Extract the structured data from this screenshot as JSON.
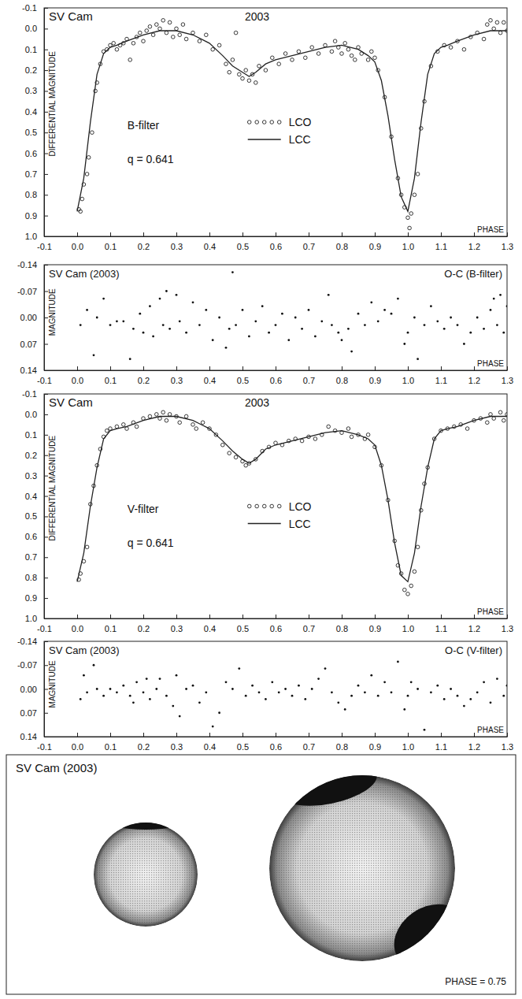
{
  "chart_data": [
    {
      "type": "line",
      "title": "SV Cam",
      "subtitle": "2003",
      "xlabel": "PHASE",
      "ylabel": "DIFFERENTIAL MAGNITUDE",
      "annotations": [
        "B-filter",
        "q = 0.641"
      ],
      "legend": "center",
      "xlim": [
        -0.1,
        1.3
      ],
      "ylim": [
        1.0,
        -0.1
      ],
      "xticks": [
        -0.1,
        {
          "value": 0,
          "label": "0.0"
        },
        0.1,
        0.2,
        0.3,
        0.4,
        0.5,
        0.6,
        0.7,
        0.8,
        0.9,
        {
          "value": 1,
          "label": "1.0"
        },
        1.1,
        1.2,
        1.3
      ],
      "yticks": [
        -0.1,
        {
          "value": 0,
          "label": "0.0"
        },
        0.1,
        0.2,
        0.3,
        0.4,
        0.5,
        0.6,
        0.7,
        0.8,
        0.9,
        {
          "value": 1,
          "label": "1.0"
        }
      ],
      "series": [
        {
          "name": "LCO",
          "type": "scatter",
          "marker": "open-circle",
          "color": "#222222",
          "x": [
            0.005,
            0.01,
            0.015,
            0.02,
            0.03,
            0.035,
            0.045,
            0.055,
            0.06,
            0.07,
            0.08,
            0.09,
            0.1,
            0.11,
            0.12,
            0.13,
            0.14,
            0.15,
            0.16,
            0.17,
            0.18,
            0.19,
            0.2,
            0.21,
            0.22,
            0.23,
            0.24,
            0.25,
            0.26,
            0.27,
            0.28,
            0.29,
            0.3,
            0.31,
            0.32,
            0.33,
            0.35,
            0.37,
            0.39,
            0.41,
            0.43,
            0.45,
            0.46,
            0.47,
            0.48,
            0.49,
            0.5,
            0.51,
            0.52,
            0.53,
            0.54,
            0.55,
            0.57,
            0.59,
            0.61,
            0.63,
            0.65,
            0.67,
            0.69,
            0.71,
            0.73,
            0.75,
            0.77,
            0.78,
            0.79,
            0.8,
            0.81,
            0.82,
            0.83,
            0.84,
            0.85,
            0.86,
            0.88,
            0.89,
            0.9,
            0.91,
            0.93,
            0.95,
            0.97,
            0.98,
            0.99,
            1.0,
            1.005,
            1.01,
            1.02,
            1.03,
            1.04,
            1.05,
            1.07,
            1.09,
            1.11,
            1.13,
            1.15,
            1.17,
            1.19,
            1.21,
            1.23,
            1.24,
            1.25,
            1.26,
            1.27,
            1.28,
            1.29,
            1.3
          ],
          "values": [
            0.87,
            0.88,
            0.82,
            0.75,
            0.7,
            0.62,
            0.5,
            0.3,
            0.26,
            0.17,
            0.11,
            0.1,
            0.08,
            0.07,
            0.1,
            0.08,
            0.07,
            0.05,
            0.15,
            0.07,
            0.04,
            0.02,
            0.06,
            0.01,
            -0.01,
            0.03,
            -0.02,
            0.0,
            -0.04,
            0.02,
            -0.03,
            0.04,
            0.0,
            0.03,
            -0.02,
            0.05,
            0.02,
            0.06,
            0.03,
            0.1,
            0.08,
            0.17,
            0.21,
            0.15,
            0.02,
            0.22,
            0.24,
            0.2,
            0.25,
            0.22,
            0.26,
            0.18,
            0.2,
            0.14,
            0.17,
            0.12,
            0.15,
            0.11,
            0.14,
            0.09,
            0.12,
            0.08,
            0.11,
            0.06,
            0.09,
            0.12,
            0.07,
            0.1,
            0.13,
            0.15,
            0.09,
            0.12,
            0.15,
            0.11,
            0.14,
            0.2,
            0.33,
            0.52,
            0.72,
            0.8,
            0.86,
            0.91,
            0.96,
            0.89,
            0.8,
            0.7,
            0.48,
            0.35,
            0.18,
            0.11,
            0.08,
            0.09,
            0.06,
            0.1,
            0.04,
            0.02,
            0.05,
            -0.02,
            -0.04,
            0.0,
            -0.03,
            0.02,
            -0.03,
            0.01
          ]
        },
        {
          "name": "LCC",
          "type": "line",
          "line_style": "solid",
          "color": "#222222",
          "x": [
            0,
            0.02,
            0.04,
            0.06,
            0.08,
            0.1,
            0.12,
            0.15,
            0.2,
            0.25,
            0.3,
            0.35,
            0.4,
            0.44,
            0.47,
            0.5,
            0.52,
            0.54,
            0.57,
            0.6,
            0.65,
            0.7,
            0.75,
            0.8,
            0.85,
            0.88,
            0.9,
            0.92,
            0.94,
            0.96,
            0.98,
            1.0,
            1.02,
            1.04,
            1.06,
            1.08,
            1.1,
            1.12,
            1.15,
            1.2,
            1.25,
            1.3
          ],
          "values": [
            0.88,
            0.72,
            0.45,
            0.22,
            0.12,
            0.09,
            0.08,
            0.06,
            0.03,
            0.01,
            0.01,
            0.03,
            0.07,
            0.13,
            0.18,
            0.21,
            0.23,
            0.21,
            0.17,
            0.15,
            0.13,
            0.11,
            0.09,
            0.08,
            0.1,
            0.13,
            0.16,
            0.25,
            0.42,
            0.63,
            0.81,
            0.88,
            0.72,
            0.45,
            0.22,
            0.12,
            0.09,
            0.08,
            0.06,
            0.03,
            0.01,
            0.01
          ]
        }
      ]
    },
    {
      "type": "scatter",
      "title": "SV Cam (2003)",
      "subtitle": "O-C (B-filter)",
      "xlabel": "PHASE",
      "ylabel": "MAGNITUDE",
      "marker": "dot",
      "color": "#111111",
      "xlim": [
        -0.1,
        1.3
      ],
      "ylim": [
        0.14,
        -0.14
      ],
      "xticks": [
        -0.1,
        {
          "value": 0,
          "label": "0.0"
        },
        0.1,
        0.2,
        0.3,
        0.4,
        0.5,
        0.6,
        0.7,
        0.8,
        0.9,
        {
          "value": 1,
          "label": "1.0"
        },
        1.1,
        1.2,
        1.3
      ],
      "yticks": [
        -0.14,
        -0.07,
        {
          "value": 0,
          "label": "0.00"
        },
        0.07,
        0.14
      ],
      "x": [
        0.01,
        0.03,
        0.05,
        0.06,
        0.08,
        0.1,
        0.12,
        0.14,
        0.16,
        0.17,
        0.19,
        0.2,
        0.22,
        0.23,
        0.25,
        0.26,
        0.27,
        0.28,
        0.3,
        0.31,
        0.33,
        0.35,
        0.37,
        0.39,
        0.41,
        0.43,
        0.45,
        0.46,
        0.47,
        0.48,
        0.5,
        0.52,
        0.54,
        0.56,
        0.58,
        0.6,
        0.62,
        0.64,
        0.66,
        0.68,
        0.7,
        0.72,
        0.74,
        0.76,
        0.77,
        0.79,
        0.8,
        0.82,
        0.83,
        0.85,
        0.87,
        0.89,
        0.91,
        0.93,
        0.95,
        0.97,
        0.99,
        1.0,
        1.02,
        1.03,
        1.05,
        1.07,
        1.09,
        1.11,
        1.13,
        1.15,
        1.17,
        1.19,
        1.21,
        1.23,
        1.25,
        1.26,
        1.27,
        1.28,
        1.29,
        1.3
      ],
      "values": [
        0.02,
        -0.02,
        0.1,
        0.0,
        -0.05,
        0.02,
        0.01,
        0.01,
        0.11,
        0.03,
        -0.01,
        0.04,
        -0.03,
        0.05,
        -0.05,
        0.02,
        -0.07,
        0.03,
        -0.06,
        0.01,
        0.04,
        -0.04,
        0.02,
        -0.02,
        0.06,
        0.0,
        0.08,
        0.03,
        -0.12,
        0.02,
        -0.02,
        0.05,
        0.01,
        -0.03,
        0.04,
        0.02,
        -0.01,
        0.06,
        0.0,
        0.03,
        -0.02,
        0.05,
        0.01,
        -0.06,
        0.02,
        0.04,
        0.06,
        0.03,
        0.09,
        -0.01,
        0.02,
        -0.04,
        0.01,
        -0.02,
        -0.01,
        -0.05,
        0.07,
        0.04,
        0.0,
        0.11,
        0.02,
        -0.03,
        0.01,
        0.03,
        0.0,
        0.02,
        0.07,
        0.04,
        0.0,
        0.03,
        -0.02,
        -0.05,
        0.02,
        -0.06,
        0.04,
        -0.03
      ]
    },
    {
      "type": "line",
      "title": "SV Cam",
      "subtitle": "2003",
      "xlabel": "PHASE",
      "ylabel": "DIFFERENTIAL MAGNITUDE",
      "annotations": [
        "V-filter",
        "q = 0.641"
      ],
      "legend": "center",
      "xlim": [
        -0.1,
        1.3
      ],
      "ylim": [
        1.0,
        -0.1
      ],
      "xticks": [
        -0.1,
        {
          "value": 0,
          "label": "0.0"
        },
        0.1,
        0.2,
        0.3,
        0.4,
        0.5,
        0.6,
        0.7,
        0.8,
        0.9,
        {
          "value": 1,
          "label": "1.0"
        },
        1.1,
        1.2,
        1.3
      ],
      "yticks": [
        -0.1,
        {
          "value": 0,
          "label": "0.0"
        },
        0.1,
        0.2,
        0.3,
        0.4,
        0.5,
        0.6,
        0.7,
        0.8,
        0.9,
        {
          "value": 1,
          "label": "1.0"
        }
      ],
      "series": [
        {
          "name": "LCO",
          "type": "scatter",
          "marker": "open-circle",
          "color": "#222222",
          "x": [
            0.005,
            0.01,
            0.02,
            0.03,
            0.04,
            0.05,
            0.06,
            0.07,
            0.08,
            0.09,
            0.1,
            0.12,
            0.14,
            0.15,
            0.17,
            0.18,
            0.2,
            0.22,
            0.24,
            0.25,
            0.26,
            0.27,
            0.28,
            0.3,
            0.31,
            0.33,
            0.35,
            0.36,
            0.38,
            0.4,
            0.42,
            0.44,
            0.46,
            0.48,
            0.5,
            0.51,
            0.52,
            0.54,
            0.56,
            0.58,
            0.6,
            0.62,
            0.64,
            0.66,
            0.68,
            0.7,
            0.72,
            0.74,
            0.76,
            0.78,
            0.8,
            0.82,
            0.83,
            0.85,
            0.87,
            0.88,
            0.9,
            0.92,
            0.94,
            0.96,
            0.97,
            0.98,
            0.99,
            1.0,
            1.01,
            1.02,
            1.03,
            1.04,
            1.05,
            1.06,
            1.08,
            1.1,
            1.12,
            1.14,
            1.16,
            1.18,
            1.2,
            1.22,
            1.24,
            1.25,
            1.26,
            1.28,
            1.29,
            1.3
          ],
          "values": [
            0.81,
            0.78,
            0.72,
            0.65,
            0.44,
            0.35,
            0.25,
            0.17,
            0.11,
            0.08,
            0.07,
            0.06,
            0.05,
            0.07,
            0.04,
            0.06,
            0.02,
            0.01,
            0.0,
            0.02,
            -0.01,
            0.03,
            0.0,
            0.01,
            0.04,
            0.01,
            0.05,
            0.07,
            0.04,
            0.07,
            0.1,
            0.15,
            0.19,
            0.21,
            0.23,
            0.25,
            0.24,
            0.22,
            0.18,
            0.16,
            0.14,
            0.15,
            0.13,
            0.12,
            0.13,
            0.11,
            0.12,
            0.1,
            0.06,
            0.08,
            0.09,
            0.07,
            0.11,
            0.1,
            0.12,
            0.1,
            0.16,
            0.25,
            0.42,
            0.62,
            0.74,
            0.78,
            0.86,
            0.88,
            0.84,
            0.77,
            0.65,
            0.47,
            0.34,
            0.26,
            0.12,
            0.08,
            0.07,
            0.06,
            0.05,
            0.07,
            0.03,
            0.02,
            0.04,
            0.0,
            0.02,
            -0.01,
            0.03,
            0.0
          ]
        },
        {
          "name": "LCC",
          "type": "line",
          "line_style": "solid",
          "color": "#222222",
          "x": [
            0,
            0.02,
            0.04,
            0.06,
            0.08,
            0.1,
            0.12,
            0.15,
            0.2,
            0.25,
            0.3,
            0.35,
            0.4,
            0.44,
            0.47,
            0.5,
            0.52,
            0.54,
            0.57,
            0.6,
            0.65,
            0.7,
            0.75,
            0.8,
            0.85,
            0.88,
            0.9,
            0.92,
            0.94,
            0.96,
            0.98,
            1.0,
            1.02,
            1.04,
            1.06,
            1.08,
            1.1,
            1.12,
            1.15,
            1.2,
            1.25,
            1.3
          ],
          "values": [
            0.82,
            0.68,
            0.45,
            0.26,
            0.12,
            0.08,
            0.07,
            0.06,
            0.03,
            0.01,
            0.01,
            0.03,
            0.07,
            0.13,
            0.18,
            0.22,
            0.24,
            0.22,
            0.17,
            0.15,
            0.13,
            0.11,
            0.09,
            0.08,
            0.1,
            0.12,
            0.15,
            0.25,
            0.42,
            0.63,
            0.79,
            0.82,
            0.68,
            0.45,
            0.26,
            0.12,
            0.08,
            0.07,
            0.06,
            0.03,
            0.01,
            0.01
          ]
        }
      ]
    },
    {
      "type": "scatter",
      "title": "SV Cam (2003)",
      "subtitle": "O-C (V-filter)",
      "xlabel": "PHASE",
      "ylabel": "MAGNITUDE",
      "marker": "dot",
      "color": "#111111",
      "xlim": [
        -0.1,
        1.3
      ],
      "ylim": [
        0.14,
        -0.14
      ],
      "xticks": [
        -0.1,
        {
          "value": 0,
          "label": "0.0"
        },
        0.1,
        0.2,
        0.3,
        0.4,
        0.5,
        0.6,
        0.7,
        0.8,
        0.9,
        {
          "value": 1,
          "label": "1.0"
        },
        1.1,
        1.2,
        1.3
      ],
      "yticks": [
        -0.14,
        -0.07,
        {
          "value": 0,
          "label": "0.00"
        },
        0.07,
        0.14
      ],
      "x": [
        0.01,
        0.02,
        0.03,
        0.05,
        0.06,
        0.08,
        0.1,
        0.12,
        0.14,
        0.16,
        0.17,
        0.18,
        0.2,
        0.21,
        0.22,
        0.24,
        0.25,
        0.27,
        0.29,
        0.3,
        0.31,
        0.33,
        0.35,
        0.37,
        0.39,
        0.41,
        0.43,
        0.45,
        0.47,
        0.49,
        0.51,
        0.53,
        0.55,
        0.57,
        0.59,
        0.61,
        0.63,
        0.65,
        0.67,
        0.69,
        0.71,
        0.73,
        0.75,
        0.77,
        0.79,
        0.81,
        0.83,
        0.85,
        0.87,
        0.89,
        0.91,
        0.93,
        0.95,
        0.97,
        0.99,
        1.0,
        1.01,
        1.03,
        1.05,
        1.07,
        1.09,
        1.11,
        1.13,
        1.15,
        1.17,
        1.19,
        1.21,
        1.23,
        1.25,
        1.27,
        1.29,
        1.3
      ],
      "values": [
        0.03,
        -0.04,
        0.01,
        -0.07,
        0.0,
        0.02,
        0.0,
        0.01,
        -0.01,
        0.02,
        0.04,
        -0.02,
        0.01,
        -0.03,
        0.03,
        0.0,
        -0.03,
        0.02,
        0.05,
        -0.04,
        0.08,
        0.0,
        -0.01,
        0.04,
        0.01,
        0.11,
        0.07,
        -0.02,
        0.0,
        -0.06,
        0.02,
        -0.01,
        0.01,
        0.03,
        -0.02,
        0.01,
        0.0,
        0.02,
        -0.01,
        0.03,
        0.0,
        -0.03,
        -0.06,
        0.01,
        0.04,
        0.06,
        0.02,
        -0.01,
        0.01,
        -0.04,
        0.02,
        -0.02,
        0.01,
        -0.08,
        0.06,
        0.02,
        -0.02,
        0.0,
        0.12,
        0.01,
        -0.01,
        0.03,
        0.0,
        0.02,
        0.05,
        0.03,
        0.01,
        -0.02,
        0.04,
        -0.03,
        0.02,
        -0.01
      ]
    }
  ],
  "model_view": {
    "title": "SV Cam (2003)",
    "phase_label": "PHASE = 0.75"
  }
}
